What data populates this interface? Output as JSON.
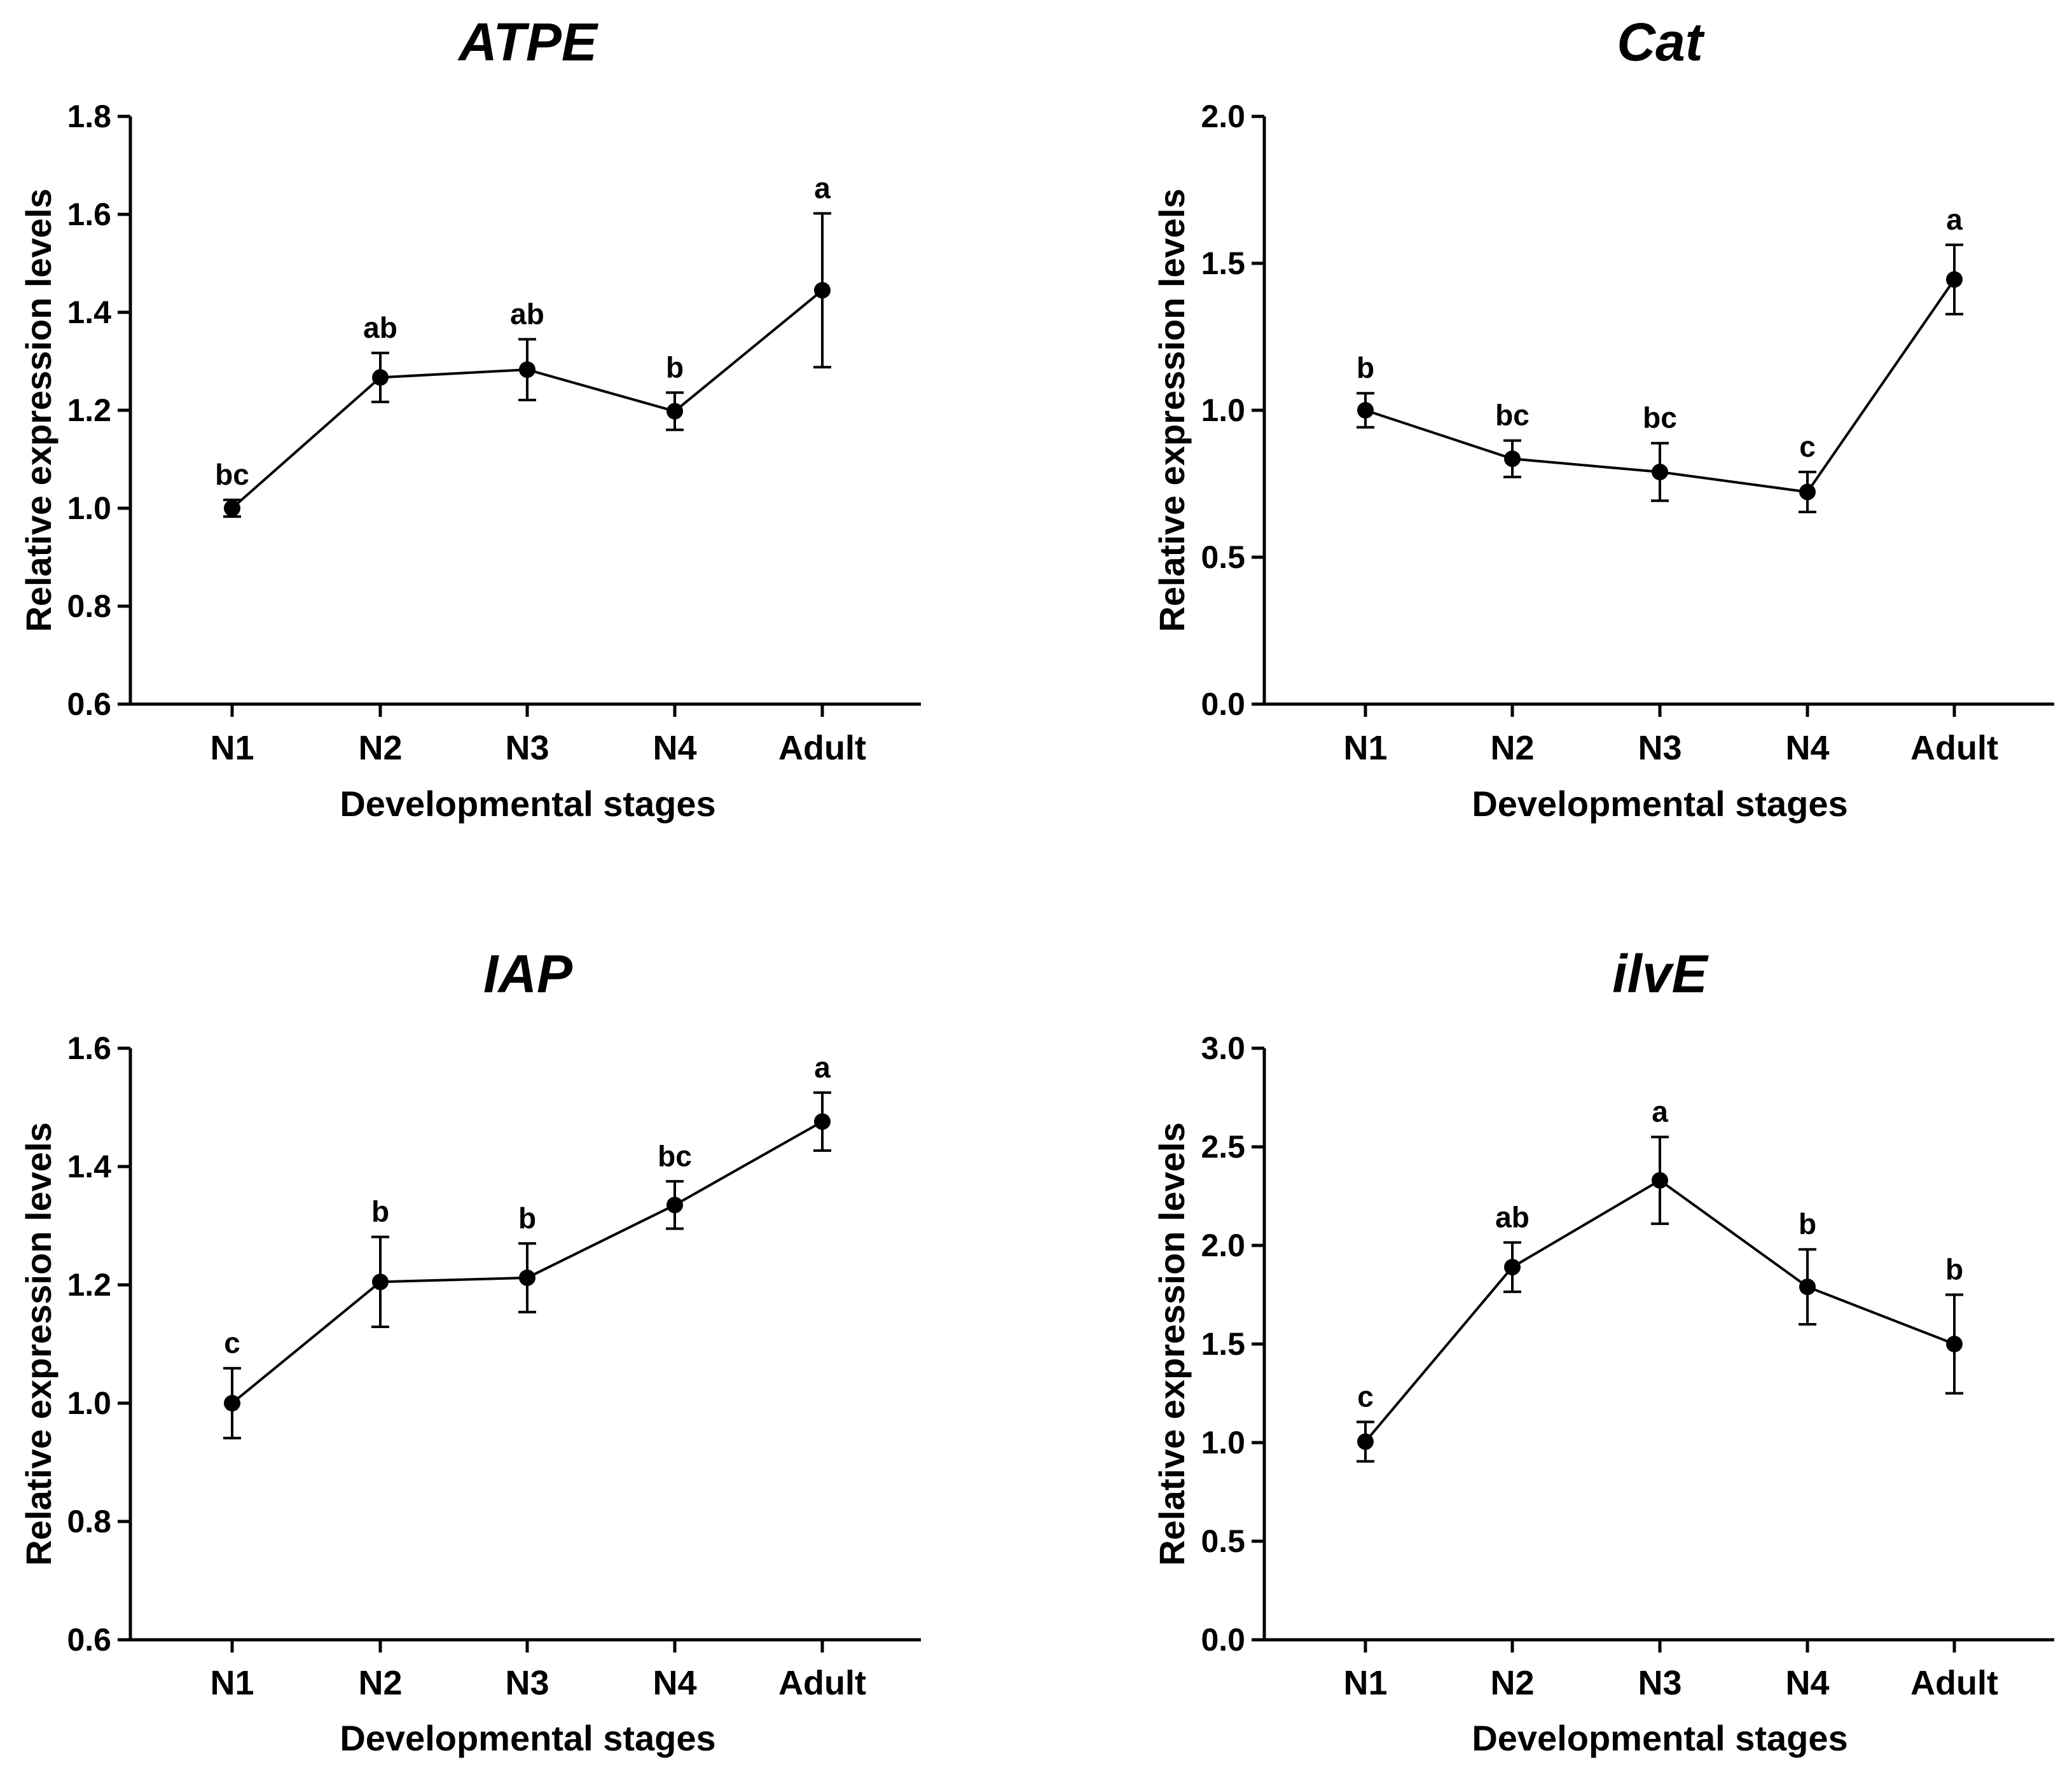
{
  "chart_data": [
    {
      "type": "line",
      "title": "ATPE",
      "xlabel": "Developmental stages",
      "ylabel": "Relative expression levels",
      "categories": [
        "N1",
        "N2",
        "N3",
        "N4",
        "Adult"
      ],
      "values": [
        1.0,
        1.267,
        1.283,
        1.198,
        1.445
      ],
      "errors": [
        0.017,
        0.05,
        0.062,
        0.038,
        0.157
      ],
      "labels": [
        "bc",
        "ab",
        "ab",
        "b",
        "a"
      ],
      "ylim": [
        0.6,
        1.8
      ],
      "yticks": [
        0.6,
        0.8,
        1.0,
        1.2,
        1.4,
        1.6,
        1.8
      ],
      "ytick_labels": [
        "0.6",
        "0.8",
        "1.0",
        "1.2",
        "1.4",
        "1.6",
        "1.8"
      ]
    },
    {
      "type": "line",
      "title": "Cat",
      "xlabel": "Developmental stages",
      "ylabel": "Relative expression levels",
      "categories": [
        "N1",
        "N2",
        "N3",
        "N4",
        "Adult"
      ],
      "values": [
        1.0,
        0.835,
        0.79,
        0.722,
        1.445
      ],
      "errors": [
        0.058,
        0.062,
        0.098,
        0.068,
        0.118
      ],
      "labels": [
        "b",
        "bc",
        "bc",
        "c",
        "a"
      ],
      "ylim": [
        0.0,
        2.0
      ],
      "yticks": [
        0.0,
        0.5,
        1.0,
        1.5,
        2.0
      ],
      "ytick_labels": [
        "0.0",
        "0.5",
        "1.0",
        "1.5",
        "2.0"
      ]
    },
    {
      "type": "line",
      "title": "IAP",
      "xlabel": "Developmental stages",
      "ylabel": "Relative expression levels",
      "categories": [
        "N1",
        "N2",
        "N3",
        "N4",
        "Adult"
      ],
      "values": [
        1.0,
        1.205,
        1.212,
        1.335,
        1.476
      ],
      "errors": [
        0.059,
        0.076,
        0.058,
        0.04,
        0.049
      ],
      "labels": [
        "c",
        "b",
        "b",
        "bc",
        "a"
      ],
      "ylim": [
        0.6,
        1.6
      ],
      "yticks": [
        0.6,
        0.8,
        1.0,
        1.2,
        1.4,
        1.6
      ],
      "ytick_labels": [
        "0.6",
        "0.8",
        "1.0",
        "1.2",
        "1.4",
        "1.6"
      ]
    },
    {
      "type": "line",
      "title": "ilvE",
      "xlabel": "Developmental stages",
      "ylabel": "Relative expression levels",
      "categories": [
        "N1",
        "N2",
        "N3",
        "N4",
        "Adult"
      ],
      "values": [
        1.005,
        1.89,
        2.33,
        1.79,
        1.5
      ],
      "errors": [
        0.1,
        0.125,
        0.22,
        0.19,
        0.25
      ],
      "labels": [
        "c",
        "ab",
        "a",
        "b",
        "b"
      ],
      "ylim": [
        0.0,
        3.0
      ],
      "yticks": [
        0.0,
        0.5,
        1.0,
        1.5,
        2.0,
        2.5,
        3.0
      ],
      "ytick_labels": [
        "0.0",
        "0.5",
        "1.0",
        "1.5",
        "2.0",
        "2.5",
        "3.0"
      ]
    }
  ]
}
